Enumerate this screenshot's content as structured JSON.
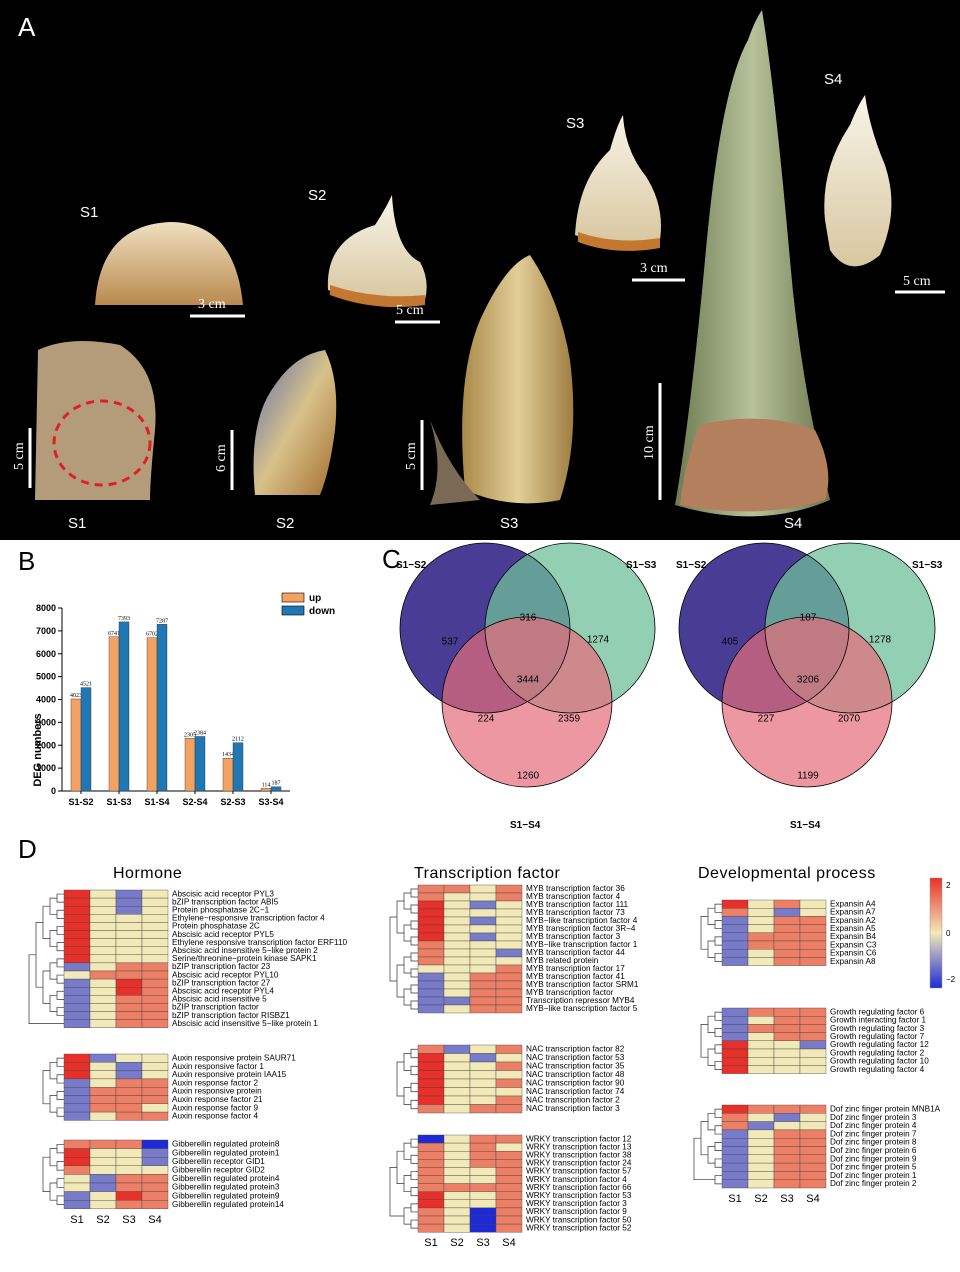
{
  "panels": {
    "A": "A",
    "B": "B",
    "C": "C",
    "D": "D"
  },
  "panelA": {
    "top_labels": [
      "S1",
      "S2",
      "S3",
      "S4"
    ],
    "bottom_labels": [
      "S1",
      "S2",
      "S3",
      "S4"
    ],
    "scale_top": [
      "3 cm",
      "5 cm",
      "3 cm",
      "5 cm"
    ],
    "scale_bottom": [
      "5 cm",
      "6 cm",
      "5 cm",
      "10 cm"
    ]
  },
  "chart_data": [
    {
      "type": "bar",
      "panel": "B",
      "categories": [
        "S1-S2",
        "S1-S3",
        "S1-S4",
        "S2-S4",
        "S2-S3",
        "S3-S4"
      ],
      "series": [
        {
          "name": "up",
          "values": [
            4023,
            6741,
            6702,
            2305,
            1434,
            114
          ],
          "color": "#f4a261"
        },
        {
          "name": "down",
          "values": [
            4521,
            7393,
            7287,
            2384,
            2112,
            187
          ],
          "color": "#1f77b4"
        }
      ],
      "value_labels": {
        "up": [
          "4023",
          "6741",
          "6702",
          "2305",
          "1434",
          "114"
        ],
        "down": [
          "4521",
          "7393",
          "7287",
          "2384",
          "2112",
          "187"
        ]
      },
      "ylabel": "DEG numbers",
      "ylim": [
        0,
        8000
      ],
      "yticks": [
        "0",
        "1000",
        "2000",
        "3000",
        "4000",
        "5000",
        "6000",
        "7000",
        "8000"
      ],
      "legend_position": "top-right"
    }
  ],
  "venn": [
    {
      "sets": [
        "S1−S2",
        "S1−S3",
        "S1−S4"
      ],
      "values": {
        "only12": "537",
        "only13": "1274",
        "only14": "1260",
        "a_b": "316",
        "a_c": "224",
        "b_c": "2359",
        "abc": "3444"
      }
    },
    {
      "sets": [
        "S1−S2",
        "S1−S3",
        "S1−S4"
      ],
      "values": {
        "only12": "405",
        "only13": "1278",
        "only14": "1199",
        "a_b": "187",
        "a_c": "227",
        "b_c": "2070",
        "abc": "3206"
      }
    }
  ],
  "heatmap": {
    "titles": [
      "Hormone",
      "Transcription factor",
      "Developmental process"
    ],
    "columns": [
      "S1",
      "S2",
      "S3",
      "S4"
    ],
    "colorbar_ticks": [
      "2",
      "0",
      "−2"
    ],
    "groups": [
      {
        "id": "hormone1",
        "rows": [
          "Abscisic acid receptor PYL3",
          "bZIP transcription factor ABI5",
          "Protein phosphatase 2C−1",
          "Ethylene−responsive transcription factor 4",
          "Protein phosphatase 2C",
          "Abscisic acid receptor PYL5",
          "Ethylene responsive transcription factor ERF110",
          "Abscisic acid insensitive 5−like protein 2",
          "Serine/threonine−protein kinase SAPK1",
          "bZIP transcription factor 23",
          "Abscisic acid receptor PYL10",
          "bZIP transcription factor 27",
          "Abscisic acid receptor PYL4",
          "Abscisic acid insensitive 5",
          "bZIP transcription factor",
          "bZIP transcription factor RISBZ1",
          "Abscisic acid insensitive 5−like protein 1"
        ],
        "values": [
          [
            2,
            0,
            -1,
            0
          ],
          [
            2,
            0,
            -1,
            0
          ],
          [
            2,
            0,
            -1,
            0
          ],
          [
            2,
            0,
            0,
            0
          ],
          [
            2,
            0,
            0,
            0
          ],
          [
            2,
            0,
            0,
            0
          ],
          [
            2,
            0,
            0,
            0
          ],
          [
            2,
            0,
            0,
            0
          ],
          [
            2,
            0,
            0,
            0
          ],
          [
            -1,
            0,
            1,
            1
          ],
          [
            0,
            1,
            1,
            1
          ],
          [
            -1,
            0,
            2,
            1
          ],
          [
            -1,
            0,
            2,
            1
          ],
          [
            -1,
            0,
            1,
            1
          ],
          [
            -1,
            0,
            1,
            1
          ],
          [
            -1,
            0,
            1,
            1
          ],
          [
            -1,
            0,
            1,
            1
          ]
        ]
      },
      {
        "id": "hormone2",
        "rows": [
          "Auxin responsive protein SAUR71",
          "Auxin responsive factor 1",
          "Auxin responsive protein IAA15",
          "Auxin response factor 2",
          "Auxin responsive protein",
          "Auxin response factor 21",
          "Auxin response factor 9",
          "Auxin response factor 4"
        ],
        "values": [
          [
            2,
            -1,
            0,
            0
          ],
          [
            2,
            0,
            -1,
            0
          ],
          [
            2,
            0,
            -1,
            0
          ],
          [
            -1,
            0,
            1,
            1
          ],
          [
            -1,
            1,
            1,
            1
          ],
          [
            -1,
            1,
            1,
            1
          ],
          [
            -1,
            1,
            1,
            0
          ],
          [
            -1,
            0,
            1,
            1
          ]
        ]
      },
      {
        "id": "hormone3",
        "rows": [
          "Gibberellin regulated protein8",
          "Gibberellin regulated protein1",
          "Gibberellin receptor GID1",
          "Gibberellin receptor GID2",
          "Gibberellin regulated protein4",
          "Gibberellin regulated protein3",
          "Gibberellin regulated protein9",
          "Gibberellin regulated protein14"
        ],
        "values": [
          [
            1,
            1,
            1,
            -2
          ],
          [
            2,
            0,
            0,
            -1
          ],
          [
            2,
            0,
            0,
            -1
          ],
          [
            1,
            0,
            0,
            0
          ],
          [
            0,
            -1,
            1,
            1
          ],
          [
            0,
            -1,
            1,
            1
          ],
          [
            -1,
            0,
            2,
            1
          ],
          [
            -1,
            0,
            1,
            1
          ]
        ]
      },
      {
        "id": "tf1",
        "rows": [
          "MYB transcription factor 36",
          "MYB transcription factor 4",
          "MYB transcription factor 111",
          "MYB transcription factor 73",
          "MYB−like transcription factor 4",
          "MYB transcription factor 3R−4",
          "MYB transcription factor 3",
          "MYB−like transcription factor 1",
          "MYB transcription factor 44",
          "MYB related protein",
          "MYB transcription factor 17",
          "MYB transcription factor 41",
          "MYB transcription factor SRM1",
          "MYB transcription factor",
          "Transcription repressor MYB4",
          "MYB−like transcription factor 5"
        ],
        "values": [
          [
            1,
            1,
            0,
            1
          ],
          [
            1,
            0,
            0,
            1
          ],
          [
            2,
            0,
            -1,
            0
          ],
          [
            2,
            0,
            0,
            0
          ],
          [
            2,
            0,
            -1,
            0
          ],
          [
            2,
            0,
            0,
            0
          ],
          [
            2,
            0,
            -1,
            0
          ],
          [
            1,
            0,
            0,
            0
          ],
          [
            1,
            0,
            0,
            -1
          ],
          [
            1,
            0,
            0,
            0
          ],
          [
            0,
            0,
            0,
            1
          ],
          [
            -1,
            0,
            1,
            1
          ],
          [
            -1,
            0,
            1,
            1
          ],
          [
            -1,
            0,
            1,
            1
          ],
          [
            -1,
            -1,
            1,
            1
          ],
          [
            -1,
            0,
            1,
            1
          ]
        ]
      },
      {
        "id": "tf2",
        "rows": [
          "NAC transcription factor 82",
          "NAC transcription factor 53",
          "NAC transcription factor 35",
          "NAC transcription factor 48",
          "NAC transcription factor 90",
          "NAC transcription factor 74",
          "NAC transcription factor 2",
          "NAC transcription factor 3"
        ],
        "values": [
          [
            1,
            -1,
            0,
            1
          ],
          [
            2,
            0,
            -1,
            0
          ],
          [
            2,
            0,
            0,
            1
          ],
          [
            2,
            0,
            0,
            0
          ],
          [
            2,
            0,
            0,
            1
          ],
          [
            2,
            0,
            0,
            0
          ],
          [
            2,
            0,
            0,
            1
          ],
          [
            1,
            0,
            1,
            1
          ]
        ]
      },
      {
        "id": "tf3",
        "rows": [
          "WRKY transcription factor 12",
          "WRKY transcription factor 13",
          "WRKY transcription factor 38",
          "WRKY transcription factor 24",
          "WRKY transcription factor 57",
          "WRKY transcription factor 4",
          "WRKY transcription factor 66",
          "WRKY transcription factor 53",
          "WRKY transcription factor 3",
          "WRKY transcription factor 9",
          "WRKY transcription factor 50",
          "WRKY transcription factor 52"
        ],
        "values": [
          [
            -2,
            0,
            1,
            1
          ],
          [
            1,
            0,
            1,
            0
          ],
          [
            1,
            0,
            1,
            1
          ],
          [
            1,
            0,
            1,
            1
          ],
          [
            1,
            0,
            0,
            1
          ],
          [
            1,
            0,
            0,
            1
          ],
          [
            1,
            1,
            1,
            1
          ],
          [
            2,
            0,
            0,
            1
          ],
          [
            2,
            0,
            0,
            1
          ],
          [
            1,
            0,
            -2,
            1
          ],
          [
            1,
            0,
            -2,
            1
          ],
          [
            1,
            0,
            -2,
            1
          ]
        ]
      },
      {
        "id": "dev1",
        "rows": [
          "Expansin A4",
          "Expansin A7",
          "Expansin A2",
          "Expansin A5",
          "Expansin B4",
          "Expansin C3",
          "Expansin C6",
          "Expansin A8"
        ],
        "values": [
          [
            2,
            0,
            1,
            0
          ],
          [
            1,
            0,
            -1,
            0
          ],
          [
            -1,
            0,
            1,
            1
          ],
          [
            -1,
            0,
            1,
            1
          ],
          [
            -1,
            1,
            1,
            1
          ],
          [
            -1,
            1,
            1,
            1
          ],
          [
            -1,
            0,
            1,
            1
          ],
          [
            -1,
            0,
            1,
            1
          ]
        ]
      },
      {
        "id": "dev2",
        "rows": [
          "Growth regulating factor 6",
          "Growth interacting factor 1",
          "Growth regulating factor 3",
          "Growth regulating factor 7",
          "Growth regulating factor 12",
          "Growth regulating factor 2",
          "Growth regulating factor 10",
          "Growth regulating factor 4"
        ],
        "values": [
          [
            -1,
            1,
            1,
            1
          ],
          [
            -1,
            0,
            1,
            1
          ],
          [
            -1,
            1,
            1,
            1
          ],
          [
            -1,
            0,
            1,
            1
          ],
          [
            2,
            0,
            0,
            -1
          ],
          [
            2,
            0,
            0,
            0
          ],
          [
            2,
            0,
            0,
            0
          ],
          [
            2,
            0,
            0,
            0
          ]
        ]
      },
      {
        "id": "dev3",
        "rows": [
          "Dof zinc finger protein MNB1A",
          "Dof zinc finger protein 3",
          "Dof zinc finger protein 4",
          "Dof zinc finger protein 7",
          "Dof zinc finger protein 8",
          "Dof zinc finger protein 6",
          "Dof zinc finger protein 9",
          "Dof zinc finger protein 5",
          "Dof zinc finger protein 1",
          "Dof zinc finger protein 2"
        ],
        "values": [
          [
            2,
            1,
            1,
            1
          ],
          [
            1,
            0,
            -1,
            0
          ],
          [
            1,
            -1,
            0,
            0
          ],
          [
            -1,
            0,
            1,
            1
          ],
          [
            -1,
            0,
            1,
            1
          ],
          [
            -1,
            0,
            1,
            1
          ],
          [
            -1,
            0,
            1,
            1
          ],
          [
            -1,
            0,
            1,
            1
          ],
          [
            -1,
            0,
            1,
            1
          ],
          [
            -1,
            0,
            1,
            1
          ]
        ]
      }
    ]
  }
}
